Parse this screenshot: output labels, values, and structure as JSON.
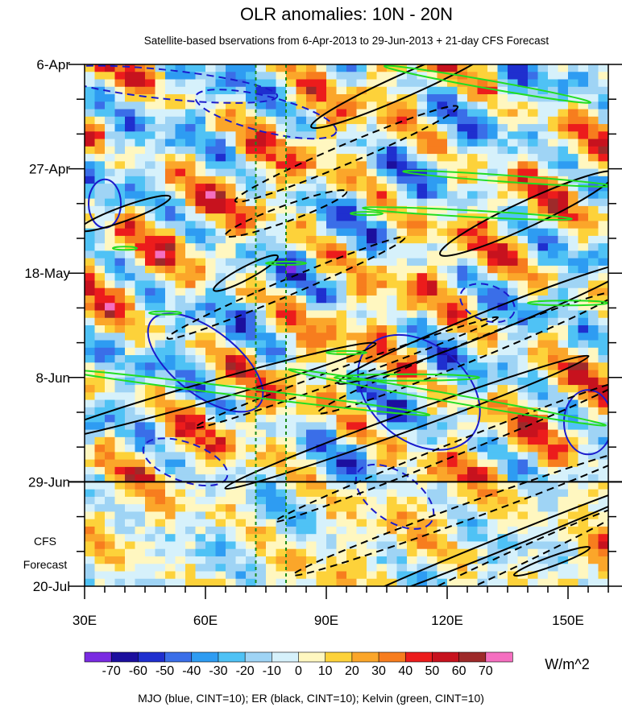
{
  "chart_data": {
    "type": "heatmap",
    "title": "OLR anomalies: 10N - 20N",
    "subtitle": "Satellite-based bservations from 6-Apr-2013 to 29-Jun-2013 + 21-day CFS Forecast",
    "x_ticks": [
      "30E",
      "60E",
      "90E",
      "120E",
      "150E"
    ],
    "x_tick_values": [
      30,
      60,
      90,
      120,
      150
    ],
    "xlim": [
      30,
      160
    ],
    "y_ticks": [
      "6-Apr",
      "27-Apr",
      "18-May",
      "8-Jun",
      "29-Jun",
      "20-Jul"
    ],
    "y_tick_days": [
      0,
      21,
      42,
      63,
      84,
      105
    ],
    "ylim_days": [
      0,
      105
    ],
    "ylim": [
      "6-Apr",
      "20-Jul"
    ],
    "forecast_start": "29-Jun",
    "forecast_label": [
      "CFS",
      "Forecast"
    ],
    "vertical_reference_lines_lon": [
      72.5,
      80
    ],
    "colorbar": {
      "labels": [
        "-70",
        "-60",
        "-50",
        "-40",
        "-30",
        "-20",
        "-10",
        "0",
        "10",
        "20",
        "30",
        "40",
        "50",
        "60",
        "70"
      ],
      "levels": [
        -70,
        -60,
        -50,
        -40,
        -30,
        -20,
        -10,
        0,
        10,
        20,
        30,
        40,
        50,
        60,
        70
      ],
      "colors": [
        "#7a2be2",
        "#1c0f9e",
        "#1f2fcf",
        "#3a6ee8",
        "#2e9cf2",
        "#4fc2f5",
        "#9fd4f5",
        "#d6f1fb",
        "#fff7c0",
        "#fdd23a",
        "#fba62a",
        "#f77d1e",
        "#ec1c1c",
        "#c7121e",
        "#9e2a2a",
        "#f56fc0"
      ],
      "units": "W/m^2"
    },
    "overlays": {
      "MJO": {
        "color": "#1a1acc",
        "cint": 10
      },
      "ER": {
        "color": "#000000",
        "cint": 10
      },
      "Kelvin": {
        "color": "#22dd22",
        "cint": 10
      }
    },
    "caption": "MJO (blue, CINT=10); ER (black, CINT=10); Kelvin (green, CINT=10)",
    "grid": false
  }
}
